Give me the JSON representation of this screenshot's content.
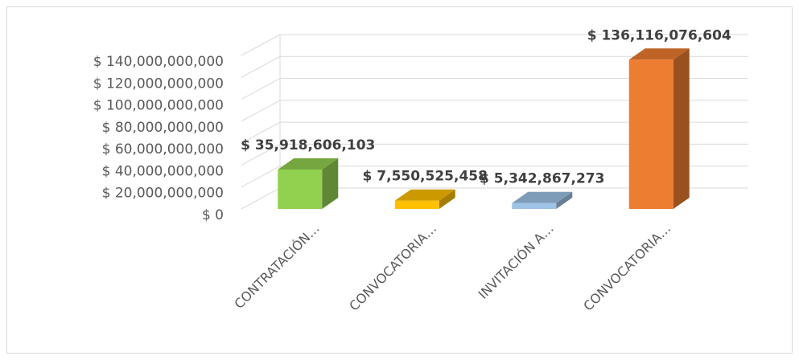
{
  "chart_data": {
    "type": "bar3d",
    "categories": [
      "CONTRATACIÓN…",
      "CONVOCATORIA…",
      "INVITACIÓN A…",
      "CONVOCATORIA…"
    ],
    "values": [
      35918606103,
      7550525458,
      5342867273,
      136116076604
    ],
    "value_labels": [
      "$ 35,918,606,103",
      "$ 7,550,525,458",
      "$ 5,342,867,273",
      "$ 136,116,076,604"
    ],
    "colors": [
      "#92d050",
      "#ffc000",
      "#9dc3e6",
      "#ed7d31"
    ],
    "ylim": [
      0,
      140000000000
    ],
    "yticks": [
      {
        "value": 0,
        "label": "$ 0"
      },
      {
        "value": 20000000000,
        "label": "$ 20,000,000,000"
      },
      {
        "value": 40000000000,
        "label": "$ 40,000,000,000"
      },
      {
        "value": 60000000000,
        "label": "$ 60,000,000,000"
      },
      {
        "value": 80000000000,
        "label": "$ 80,000,000,000"
      },
      {
        "value": 100000000000,
        "label": "$ 100,000,000,000"
      },
      {
        "value": 120000000000,
        "label": "$ 120,000,000,000"
      },
      {
        "value": 140000000000,
        "label": "$ 140,000,000,000"
      }
    ],
    "grid": true
  }
}
